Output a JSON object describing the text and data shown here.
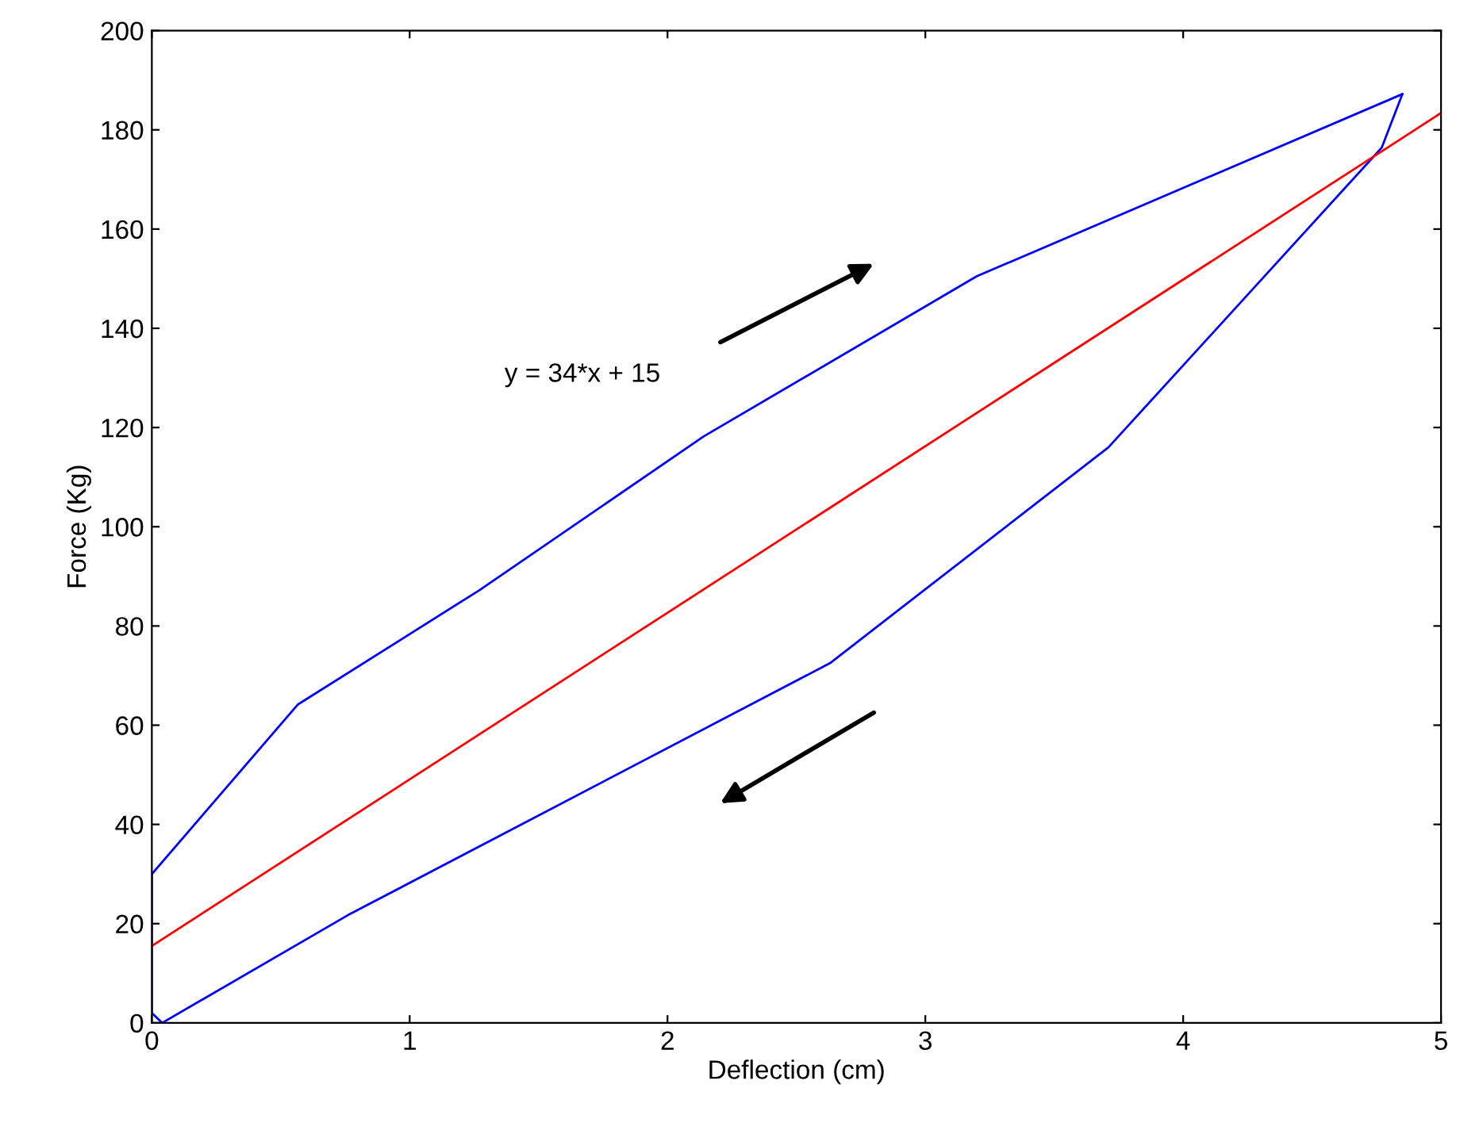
{
  "chart_data": {
    "type": "line",
    "xlabel": "Deflection (cm)",
    "ylabel": "Force (Kg)",
    "series": [
      {
        "color": "#0000ff",
        "x": [
          0,
          0.567,
          1.27,
          2.14,
          3.2,
          4.85
        ],
        "values": [
          30,
          64.2,
          87.2,
          118.2,
          150.5,
          187.2
        ]
      },
      {
        "color": "#0000ff",
        "x": [
          4.85,
          4.77,
          3.71,
          2.63,
          0.76,
          0.04,
          0
        ],
        "values": [
          187.2,
          176.4,
          116,
          72.5,
          21.7,
          0,
          2
        ]
      },
      {
        "color": "#0000ff",
        "x": [
          0,
          0
        ],
        "values": [
          2,
          30
        ]
      },
      {
        "color": "#ff0000",
        "x": [
          0,
          5
        ],
        "values": [
          15.5,
          183.4
        ]
      }
    ],
    "annotations": [
      "y = 34*x + 15"
    ],
    "xlim": [
      0,
      5
    ],
    "xticks": [
      0,
      1,
      2,
      3,
      4,
      5
    ],
    "ylim": [
      0,
      200
    ],
    "yticks": [
      0,
      20,
      40,
      60,
      80,
      100,
      120,
      140,
      160,
      180,
      200
    ],
    "grid": false,
    "legend": false,
    "marker": "none",
    "line_style": "solid"
  }
}
